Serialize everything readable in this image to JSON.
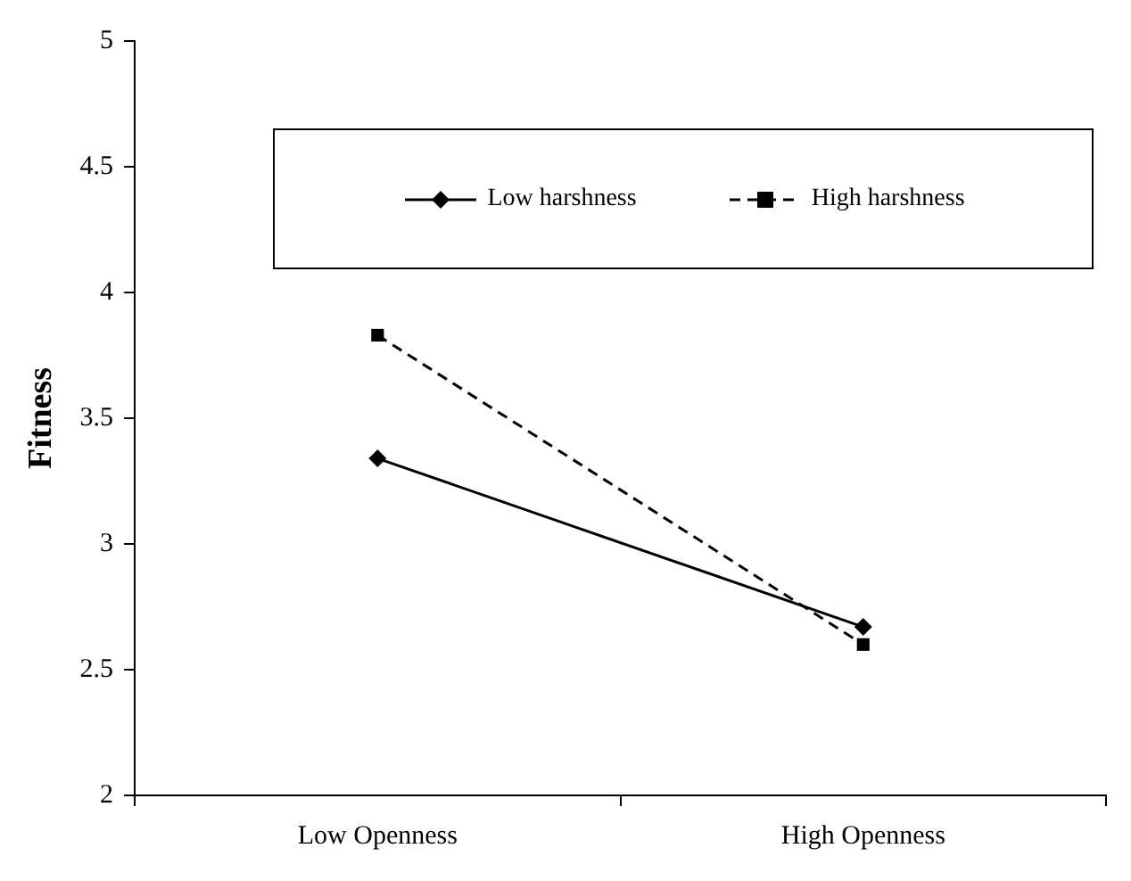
{
  "chart_data": {
    "type": "line",
    "ylabel": "Fitness",
    "categories": [
      "Low Openness",
      "High Openness"
    ],
    "series": [
      {
        "name": "Low harshness",
        "color": "#000000",
        "values": [
          3.34,
          2.67
        ],
        "marker": "diamond",
        "line_style": "solid"
      },
      {
        "name": "High harshness",
        "color": "#000000",
        "values": [
          3.83,
          2.6
        ],
        "marker": "square",
        "line_style": "dashed"
      }
    ],
    "ylim": [
      2,
      5
    ],
    "yticks": [
      2,
      2.5,
      3,
      3.5,
      4,
      4.5,
      5
    ],
    "grid": false,
    "legend": "top"
  }
}
